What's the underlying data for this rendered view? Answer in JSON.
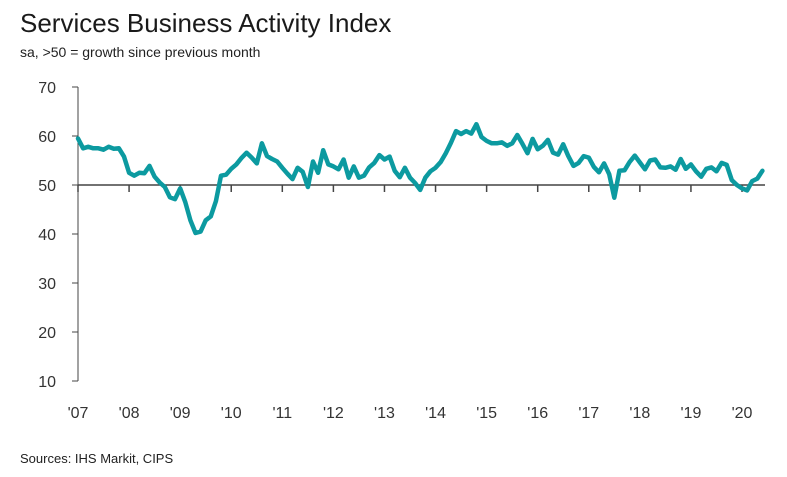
{
  "chart_data": {
    "type": "line",
    "title": "Services Business Activity Index",
    "subtitle": "sa, >50 = growth since previous month",
    "source": "Sources: IHS Markit, CIPS",
    "xlabel": "",
    "ylabel": "",
    "ylim": [
      10,
      70
    ],
    "yticks": [
      10,
      20,
      30,
      40,
      50,
      60,
      70
    ],
    "xlim": [
      2007.0,
      2020.45
    ],
    "xticks": [
      {
        "value": 2007,
        "label": "'07"
      },
      {
        "value": 2008,
        "label": "'08"
      },
      {
        "value": 2009,
        "label": "'09"
      },
      {
        "value": 2010,
        "label": "'10"
      },
      {
        "value": 2011,
        "label": "'11"
      },
      {
        "value": 2012,
        "label": "'12"
      },
      {
        "value": 2013,
        "label": "'13"
      },
      {
        "value": 2014,
        "label": "'14"
      },
      {
        "value": 2015,
        "label": "'15"
      },
      {
        "value": 2016,
        "label": "'16"
      },
      {
        "value": 2017,
        "label": "'17"
      },
      {
        "value": 2018,
        "label": "'18"
      },
      {
        "value": 2019,
        "label": "'19"
      },
      {
        "value": 2020,
        "label": "'20"
      }
    ],
    "reference_line": 50,
    "line_color": "#0c9aa0",
    "series": [
      {
        "name": "Services Business Activity Index",
        "x": [
          2007.0,
          2007.1,
          2007.2,
          2007.3,
          2007.4,
          2007.5,
          2007.6,
          2007.7,
          2007.8,
          2007.9,
          2008.0,
          2008.1,
          2008.2,
          2008.3,
          2008.4,
          2008.5,
          2008.6,
          2008.7,
          2008.8,
          2008.9,
          2009.0,
          2009.1,
          2009.2,
          2009.3,
          2009.4,
          2009.5,
          2009.6,
          2009.7,
          2009.8,
          2009.9,
          2010.0,
          2010.1,
          2010.2,
          2010.3,
          2010.4,
          2010.5,
          2010.6,
          2010.7,
          2010.8,
          2010.9,
          2011.0,
          2011.1,
          2011.2,
          2011.3,
          2011.4,
          2011.5,
          2011.6,
          2011.7,
          2011.8,
          2011.9,
          2012.0,
          2012.1,
          2012.2,
          2012.3,
          2012.4,
          2012.5,
          2012.6,
          2012.7,
          2012.8,
          2012.9,
          2013.0,
          2013.1,
          2013.2,
          2013.3,
          2013.4,
          2013.5,
          2013.6,
          2013.7,
          2013.8,
          2013.9,
          2014.0,
          2014.1,
          2014.2,
          2014.3,
          2014.4,
          2014.5,
          2014.6,
          2014.7,
          2014.8,
          2014.9,
          2015.0,
          2015.1,
          2015.2,
          2015.3,
          2015.4,
          2015.5,
          2015.6,
          2015.7,
          2015.8,
          2015.9,
          2016.0,
          2016.1,
          2016.2,
          2016.3,
          2016.4,
          2016.5,
          2016.6,
          2016.7,
          2016.8,
          2016.9,
          2017.0,
          2017.1,
          2017.2,
          2017.3,
          2017.4,
          2017.5,
          2017.6,
          2017.7,
          2017.8,
          2017.9,
          2018.0,
          2018.1,
          2018.2,
          2018.3,
          2018.4,
          2018.5,
          2018.6,
          2018.7,
          2018.8,
          2018.9,
          2019.0,
          2019.1,
          2019.2,
          2019.3,
          2019.4,
          2019.5,
          2019.6,
          2019.7,
          2019.8,
          2019.9,
          2020.0,
          2020.1,
          2020.2,
          2020.3,
          2020.4
        ],
        "values": [
          59.5,
          57.5,
          57.8,
          57.5,
          57.5,
          57.2,
          57.8,
          57.4,
          57.5,
          55.8,
          52.5,
          51.9,
          52.5,
          52.4,
          53.9,
          51.7,
          50.5,
          49.6,
          47.5,
          47.1,
          49.3,
          46.5,
          42.8,
          40.2,
          40.5,
          42.8,
          43.6,
          46.7,
          51.9,
          52.1,
          53.3,
          54.2,
          55.5,
          56.6,
          55.6,
          54.4,
          58.5,
          55.9,
          55.3,
          54.8,
          53.5,
          52.3,
          51.2,
          53.5,
          52.7,
          49.6,
          54.8,
          52.5,
          57.1,
          54.2,
          53.8,
          53.2,
          55.2,
          51.5,
          53.8,
          51.5,
          51.9,
          53.6,
          54.5,
          56.1,
          55.2,
          55.8,
          52.9,
          51.6,
          53.5,
          51.5,
          50.4,
          49.0,
          51.5,
          52.8,
          53.5,
          54.7,
          56.5,
          58.6,
          61.0,
          60.4,
          61.0,
          60.5,
          62.4,
          59.8,
          59.0,
          58.5,
          58.5,
          58.7,
          58.0,
          58.5,
          60.2,
          58.4,
          56.5,
          59.4,
          57.3,
          58.0,
          59.2,
          56.6,
          56.2,
          58.3,
          55.9,
          53.9,
          54.5,
          55.9,
          55.6,
          53.7,
          52.6,
          54.4,
          52.2,
          47.4,
          52.9,
          53.0,
          54.7,
          56.0,
          54.6,
          53.2,
          55.0,
          55.2,
          53.6,
          53.5,
          53.8,
          53.1,
          55.3,
          53.3,
          54.2,
          52.8,
          51.7,
          53.3,
          53.6,
          52.8,
          54.5,
          54.1,
          51.0,
          50.0,
          49.3,
          48.9,
          50.8,
          51.3,
          52.9
        ]
      }
    ]
  }
}
